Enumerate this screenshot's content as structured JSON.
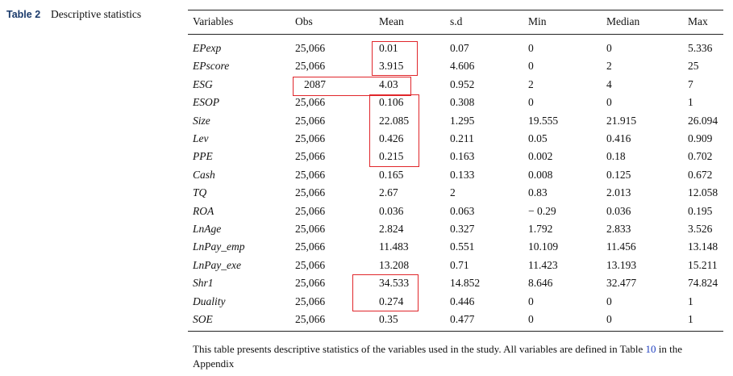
{
  "caption": {
    "label": "Table 2",
    "title": "Descriptive statistics"
  },
  "table": {
    "header": [
      "Variables",
      "Obs",
      "Mean",
      "s.d",
      "Min",
      "Median",
      "Max"
    ],
    "rows": [
      [
        "EPexp",
        "25,066",
        "0.01",
        "0.07",
        "0",
        "0",
        "5.336"
      ],
      [
        "EPscore",
        "25,066",
        "3.915",
        "4.606",
        "0",
        "2",
        "25"
      ],
      [
        "ESG",
        "2087",
        "4.03",
        "0.952",
        "2",
        "4",
        "7"
      ],
      [
        "ESOP",
        "25,066",
        "0.106",
        "0.308",
        "0",
        "0",
        "1"
      ],
      [
        "Size",
        "25,066",
        "22.085",
        "1.295",
        "19.555",
        "21.915",
        "26.094"
      ],
      [
        "Lev",
        "25,066",
        "0.426",
        "0.211",
        "0.05",
        "0.416",
        "0.909"
      ],
      [
        "PPE",
        "25,066",
        "0.215",
        "0.163",
        "0.002",
        "0.18",
        "0.702"
      ],
      [
        "Cash",
        "25,066",
        "0.165",
        "0.133",
        "0.008",
        "0.125",
        "0.672"
      ],
      [
        "TQ",
        "25,066",
        "2.67",
        "2",
        "0.83",
        "2.013",
        "12.058"
      ],
      [
        "ROA",
        "25,066",
        "0.036",
        "0.063",
        "− 0.29",
        "0.036",
        "0.195"
      ],
      [
        "LnAge",
        "25,066",
        "2.824",
        "0.327",
        "1.792",
        "2.833",
        "3.526"
      ],
      [
        "LnPay_emp",
        "25,066",
        "11.483",
        "0.551",
        "10.109",
        "11.456",
        "13.148"
      ],
      [
        "LnPay_exe",
        "25,066",
        "13.208",
        "0.71",
        "11.423",
        "13.193",
        "15.211"
      ],
      [
        "Shr1",
        "25,066",
        "34.533",
        "14.852",
        "8.646",
        "32.477",
        "74.824"
      ],
      [
        "Duality",
        "25,066",
        "0.274",
        "0.446",
        "0",
        "0",
        "1"
      ],
      [
        "SOE",
        "25,066",
        "0.35",
        "0.477",
        "0",
        "0",
        "1"
      ]
    ]
  },
  "note": {
    "before": "This table presents descriptive statistics of the variables used in the study. All variables are defined in Table ",
    "link": "10",
    "after": " in the Appendix"
  }
}
